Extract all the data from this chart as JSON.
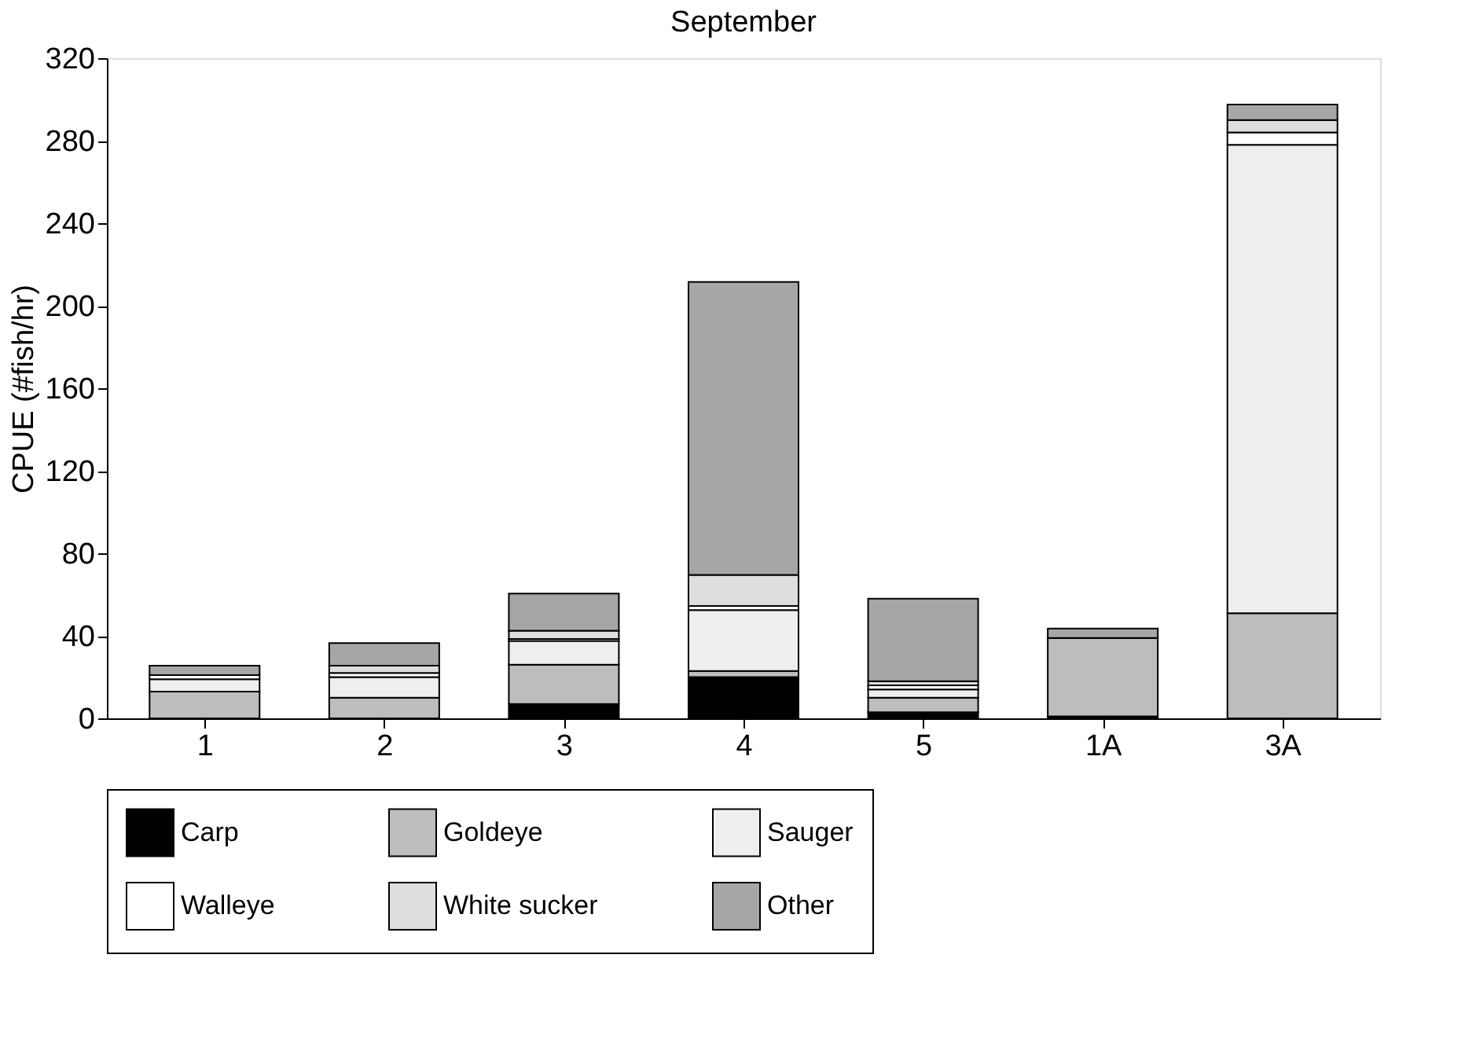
{
  "chart_data": {
    "type": "bar",
    "title": "September",
    "ylabel": "CPUE (#fish/hr)",
    "stacked": true,
    "categories": [
      "1",
      "2",
      "3",
      "4",
      "5",
      "1A",
      "3A"
    ],
    "series": [
      {
        "name": "Carp",
        "color": "#000000",
        "values": [
          0,
          0,
          7,
          20,
          3,
          1,
          0
        ]
      },
      {
        "name": "Goldeye",
        "color": "#bdbdbd",
        "values": [
          13,
          10,
          19,
          3,
          7,
          38,
          51
        ]
      },
      {
        "name": "Sauger",
        "color": "#eeeeee",
        "values": [
          6,
          10,
          11.5,
          29.5,
          4,
          0,
          227
        ]
      },
      {
        "name": "Walleye",
        "color": "#ffffff",
        "values": [
          2,
          2,
          1,
          2,
          2,
          0,
          6
        ]
      },
      {
        "name": "White sucker",
        "color": "#dedede",
        "values": [
          null,
          3.5,
          4,
          15,
          2,
          0,
          6
        ]
      },
      {
        "name": "Other",
        "color": "#a6a6a6",
        "values": [
          4.5,
          11,
          18,
          142,
          40,
          4.5,
          7.5
        ]
      }
    ],
    "ylim": [
      0,
      320
    ],
    "yticks": [
      0,
      40,
      80,
      120,
      160,
      200,
      240,
      280,
      320
    ],
    "grid": false,
    "legend": "bottom"
  }
}
